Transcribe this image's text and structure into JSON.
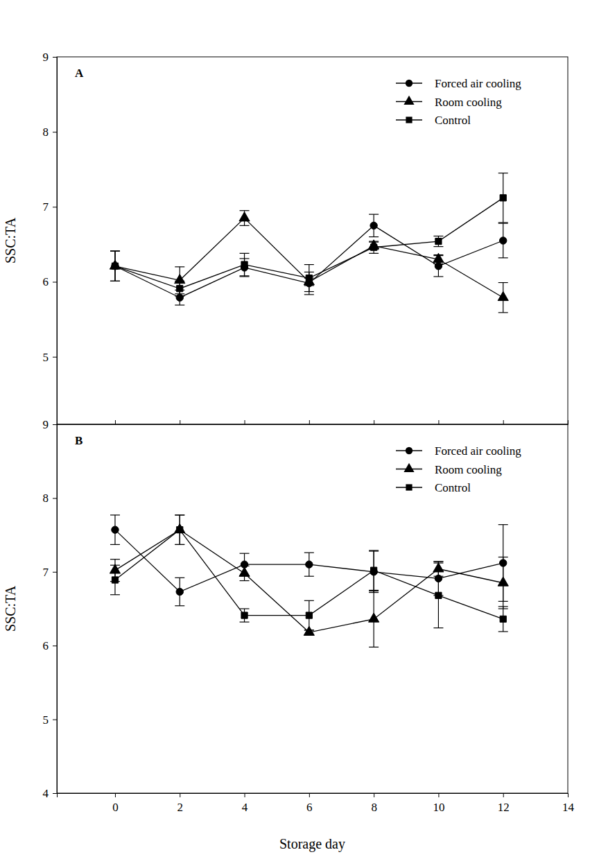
{
  "chart_data": [
    {
      "type": "line",
      "title": "A",
      "ylabel": "SSC:TA",
      "x": [
        0,
        2,
        4,
        6,
        8,
        10,
        12
      ],
      "xlim": [
        -1.8,
        14
      ],
      "xticks": [
        0,
        2,
        4,
        6,
        8,
        10,
        12,
        14
      ],
      "ylim": [
        4.1,
        9
      ],
      "yticks": [
        5,
        6,
        7,
        8,
        9
      ],
      "tick_labels": "y",
      "legend": "upper right",
      "series": [
        {
          "name": "Forced air cooling",
          "color": "#000000",
          "marker": "circle",
          "line_style": "solid",
          "values": [
            6.21,
            5.79,
            6.19,
            5.98,
            6.75,
            6.21,
            6.55
          ],
          "errors": [
            0.2,
            0.1,
            0.12,
            0.15,
            0.15,
            0.14,
            0.23
          ]
        },
        {
          "name": "Room cooling",
          "color": "#000000",
          "marker": "triangle",
          "line_style": "solid",
          "values": [
            6.21,
            6.02,
            6.85,
            6.0,
            6.48,
            6.3,
            5.79
          ],
          "errors": [
            0.2,
            0.18,
            0.1,
            0.05,
            0.05,
            0.06,
            0.2
          ]
        },
        {
          "name": "Control",
          "color": "#000000",
          "marker": "square",
          "line_style": "solid",
          "values": [
            6.21,
            5.91,
            6.23,
            6.05,
            6.46,
            6.54,
            7.12
          ],
          "errors": [
            0.2,
            0.1,
            0.15,
            0.18,
            0.08,
            0.07,
            0.33
          ]
        }
      ]
    },
    {
      "type": "line",
      "title": "B",
      "ylabel": "SSC:TA",
      "xlabel": "Storage day",
      "x": [
        0,
        2,
        4,
        6,
        8,
        10,
        12
      ],
      "xlim": [
        -1.8,
        14
      ],
      "xticks": [
        0,
        2,
        4,
        6,
        8,
        10,
        12,
        14
      ],
      "ylim": [
        4,
        9
      ],
      "yticks": [
        4,
        5,
        6,
        7,
        8,
        9
      ],
      "legend": "upper right",
      "series": [
        {
          "name": "Forced air cooling",
          "color": "#000000",
          "marker": "circle",
          "line_style": "solid",
          "values": [
            7.57,
            6.73,
            7.1,
            7.1,
            7.0,
            6.91,
            7.12
          ],
          "errors": [
            0.2,
            0.19,
            0.15,
            0.16,
            0.28,
            0.23,
            0.52
          ]
        },
        {
          "name": "Room cooling",
          "color": "#000000",
          "marker": "triangle",
          "line_style": "solid",
          "values": [
            7.02,
            7.57,
            6.98,
            6.18,
            6.36,
            7.04,
            6.85
          ],
          "errors": [
            0.15,
            0.2,
            0.1,
            0.03,
            0.38,
            0.1,
            0.35
          ]
        },
        {
          "name": "Control",
          "color": "#000000",
          "marker": "square",
          "line_style": "solid",
          "values": [
            6.89,
            7.57,
            6.41,
            6.41,
            7.02,
            6.68,
            6.36
          ],
          "errors": [
            0.2,
            0.2,
            0.09,
            0.2,
            0.27,
            0.44,
            0.17
          ]
        }
      ]
    }
  ]
}
